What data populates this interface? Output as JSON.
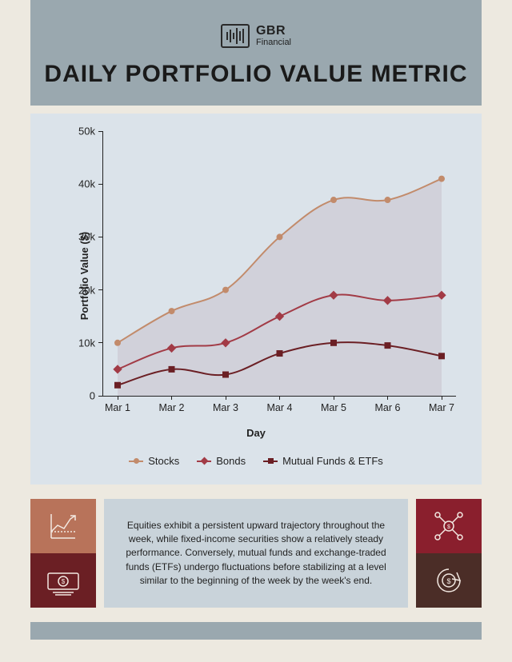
{
  "brand": {
    "line1": "GBR",
    "line2": "Financial"
  },
  "title": "DAILY PORTFOLIO VALUE METRIC",
  "chart": {
    "type": "line",
    "ylabel": "Portfolio Value ($)",
    "xlabel": "Day",
    "ylim": [
      0,
      50
    ],
    "yticks": [
      0,
      10,
      20,
      30,
      40,
      50
    ],
    "ytick_labels": [
      "0",
      "10k",
      "20k",
      "30k",
      "40k",
      "50k"
    ],
    "categories": [
      "Mar 1",
      "Mar 2",
      "Mar 3",
      "Mar 4",
      "Mar 5",
      "Mar 6",
      "Mar 7"
    ],
    "series": [
      {
        "name": "Stocks",
        "color": "#c28b6b",
        "fill": "#c9c3cc",
        "fill_opacity": 0.55,
        "marker": "circle",
        "values": [
          10,
          16,
          20,
          30,
          37,
          37,
          41
        ]
      },
      {
        "name": "Bonds",
        "color": "#a23b46",
        "fill": null,
        "marker": "diamond",
        "values": [
          5,
          9,
          10,
          15,
          19,
          18,
          19
        ]
      },
      {
        "name": "Mutual Funds & ETFs",
        "color": "#6b1f24",
        "fill": null,
        "marker": "square",
        "values": [
          2,
          5,
          4,
          8,
          10,
          9.5,
          7.5
        ]
      }
    ],
    "line_width": 2,
    "marker_size": 4,
    "background": "#dbe3ea"
  },
  "summary": "Equities exhibit a persistent upward trajectory throughout the week, while fixed-income securities show a relatively steady performance. Conversely, mutual funds and exchange-traded funds (ETFs) undergo fluctuations before stabilizing at a level similar to the beginning of the week by the week's end.",
  "icon_boxes": {
    "left_top": {
      "bg": "#b8735a",
      "icon": "growth-chart-icon"
    },
    "left_bot": {
      "bg": "#6b1f24",
      "icon": "cash-icon"
    },
    "right_top": {
      "bg": "#8a1f2d",
      "icon": "network-dollar-icon"
    },
    "right_bot": {
      "bg": "#4b2d27",
      "icon": "refresh-dollar-icon"
    }
  },
  "colors": {
    "page_bg": "#ede9e0",
    "header_bg": "#9aa8af",
    "card_bg": "#dbe3ea",
    "text_card_bg": "#c9d3da"
  }
}
